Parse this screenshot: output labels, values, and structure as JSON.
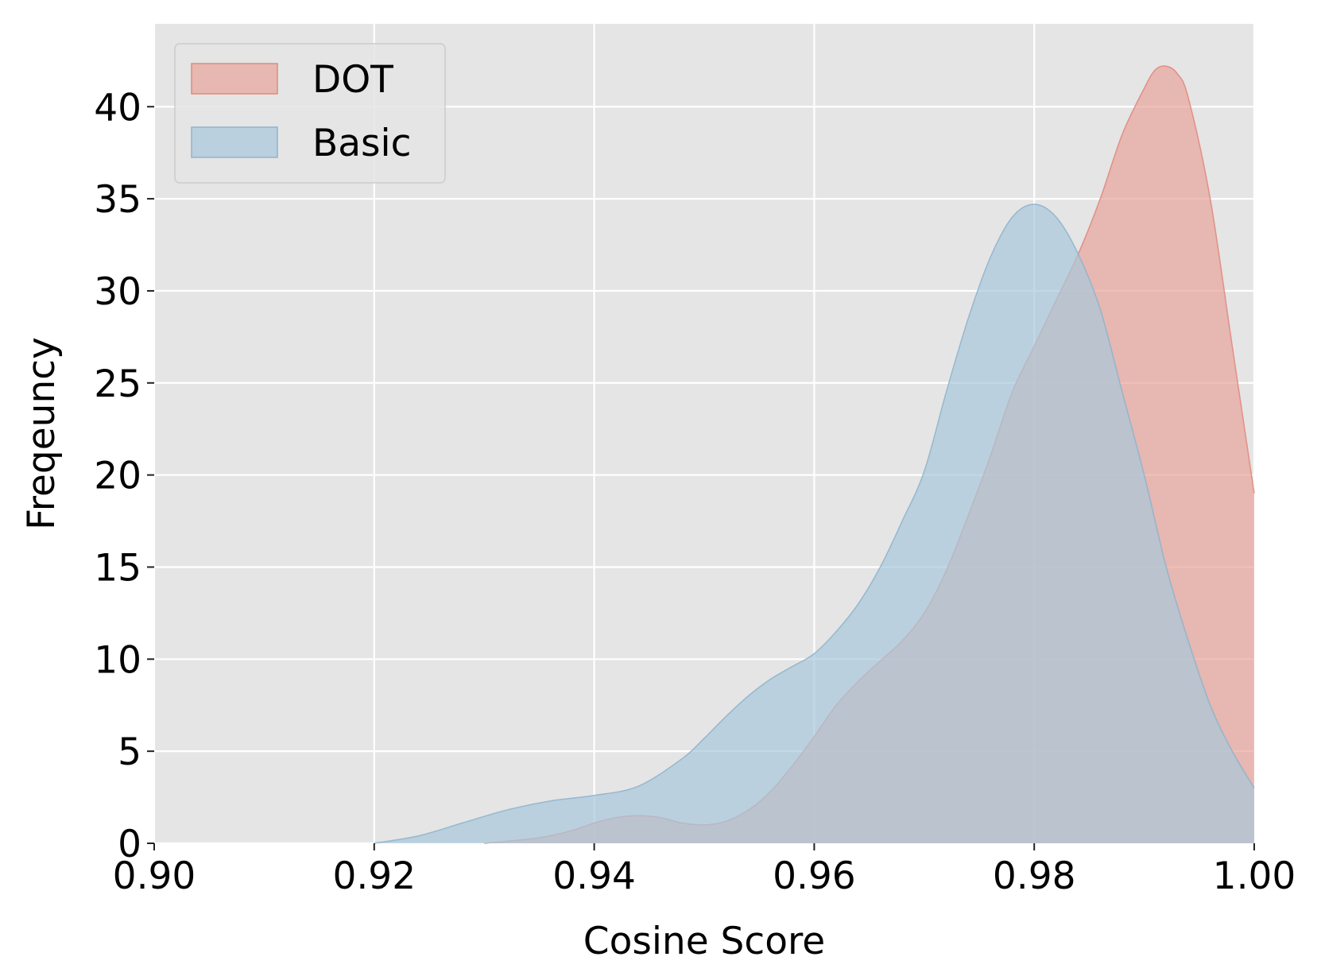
{
  "chart_data": {
    "type": "area",
    "xlabel": "Cosine Score",
    "ylabel": "Freqeuncy",
    "xlim": [
      0.9,
      1.0
    ],
    "ylim": [
      0,
      44.5
    ],
    "x_ticks": [
      0.9,
      0.92,
      0.94,
      0.96,
      0.98,
      1.0
    ],
    "x_tick_labels": [
      "0.90",
      "0.92",
      "0.94",
      "0.96",
      "0.98",
      "1.00"
    ],
    "y_ticks": [
      0,
      5,
      10,
      15,
      20,
      25,
      30,
      35,
      40
    ],
    "y_tick_labels": [
      "0",
      "5",
      "10",
      "15",
      "20",
      "25",
      "30",
      "35",
      "40"
    ],
    "grid": true,
    "legend_position": "top-left",
    "background": "#e5e5e5",
    "series": [
      {
        "name": "DOT",
        "fill": "#e8a49b",
        "fill_opacity": 0.7,
        "stroke": "#e08a7e",
        "x": [
          0.93,
          0.935,
          0.938,
          0.94,
          0.942,
          0.944,
          0.946,
          0.948,
          0.95,
          0.952,
          0.954,
          0.956,
          0.958,
          0.96,
          0.962,
          0.964,
          0.966,
          0.968,
          0.97,
          0.972,
          0.974,
          0.976,
          0.978,
          0.98,
          0.982,
          0.984,
          0.986,
          0.988,
          0.99,
          0.991,
          0.992,
          0.993,
          0.994,
          0.996,
          0.998,
          1.0
        ],
        "y": [
          0.0,
          0.3,
          0.7,
          1.1,
          1.4,
          1.5,
          1.4,
          1.1,
          1.0,
          1.2,
          1.8,
          2.8,
          4.2,
          5.8,
          7.5,
          8.8,
          9.9,
          11.0,
          12.5,
          14.8,
          17.8,
          21.0,
          24.5,
          27.0,
          29.5,
          32.0,
          35.0,
          38.5,
          41.0,
          42.0,
          42.2,
          41.8,
          40.5,
          35.0,
          27.0,
          19.0
        ]
      },
      {
        "name": "Basic",
        "fill": "#a8c8dc",
        "fill_opacity": 0.7,
        "stroke": "#8fb4cc",
        "x": [
          0.92,
          0.924,
          0.928,
          0.932,
          0.936,
          0.94,
          0.944,
          0.948,
          0.95,
          0.952,
          0.954,
          0.956,
          0.958,
          0.96,
          0.962,
          0.964,
          0.966,
          0.968,
          0.97,
          0.972,
          0.974,
          0.976,
          0.978,
          0.98,
          0.982,
          0.984,
          0.986,
          0.988,
          0.99,
          0.992,
          0.994,
          0.996,
          0.998,
          1.0
        ],
        "y": [
          0.0,
          0.4,
          1.1,
          1.8,
          2.3,
          2.6,
          3.1,
          4.6,
          5.7,
          6.9,
          8.0,
          8.9,
          9.6,
          10.3,
          11.5,
          13.0,
          15.0,
          17.5,
          20.2,
          24.5,
          28.5,
          31.8,
          34.0,
          34.7,
          34.0,
          32.0,
          29.0,
          24.5,
          20.0,
          15.0,
          11.0,
          7.5,
          5.0,
          3.0
        ]
      }
    ]
  }
}
